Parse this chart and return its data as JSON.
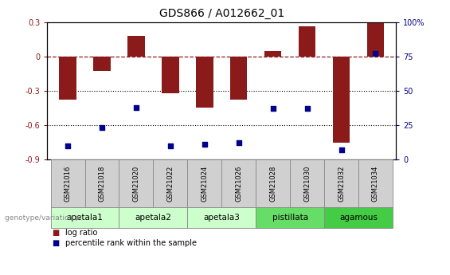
{
  "title": "GDS866 / A012662_01",
  "samples": [
    "GSM21016",
    "GSM21018",
    "GSM21020",
    "GSM21022",
    "GSM21024",
    "GSM21026",
    "GSM21028",
    "GSM21030",
    "GSM21032",
    "GSM21034"
  ],
  "log_ratio": [
    -0.38,
    -0.13,
    0.18,
    -0.32,
    -0.45,
    -0.38,
    0.05,
    0.26,
    -0.75,
    0.3
  ],
  "percentile_rank": [
    10,
    23,
    38,
    10,
    11,
    12,
    37,
    37,
    7,
    77
  ],
  "bar_color": "#8B1A1A",
  "dot_color": "#00008B",
  "left_ylim": [
    -0.9,
    0.3
  ],
  "right_ylim": [
    0,
    100
  ],
  "left_yticks": [
    -0.9,
    -0.6,
    -0.3,
    0.0,
    0.3
  ],
  "right_yticks": [
    0,
    25,
    50,
    75,
    100
  ],
  "hline_y": 0.0,
  "dotted_lines": [
    -0.3,
    -0.6
  ],
  "groups": [
    {
      "label": "apetala1",
      "samples": [
        "GSM21016",
        "GSM21018"
      ],
      "color": "#ccffcc"
    },
    {
      "label": "apetala2",
      "samples": [
        "GSM21020",
        "GSM21022"
      ],
      "color": "#ccffcc"
    },
    {
      "label": "apetala3",
      "samples": [
        "GSM21024",
        "GSM21026"
      ],
      "color": "#ccffcc"
    },
    {
      "label": "pistillata",
      "samples": [
        "GSM21028",
        "GSM21030"
      ],
      "color": "#66dd66"
    },
    {
      "label": "agamous",
      "samples": [
        "GSM21032",
        "GSM21034"
      ],
      "color": "#44cc44"
    }
  ],
  "genotype_label": "genotype/variation",
  "legend_bar_label": "log ratio",
  "legend_dot_label": "percentile rank within the sample",
  "background_color": "#ffffff",
  "plot_bg_color": "#ffffff",
  "gray_box_color": "#d0d0d0",
  "bar_width": 0.5,
  "xlim": [
    -0.6,
    9.6
  ]
}
